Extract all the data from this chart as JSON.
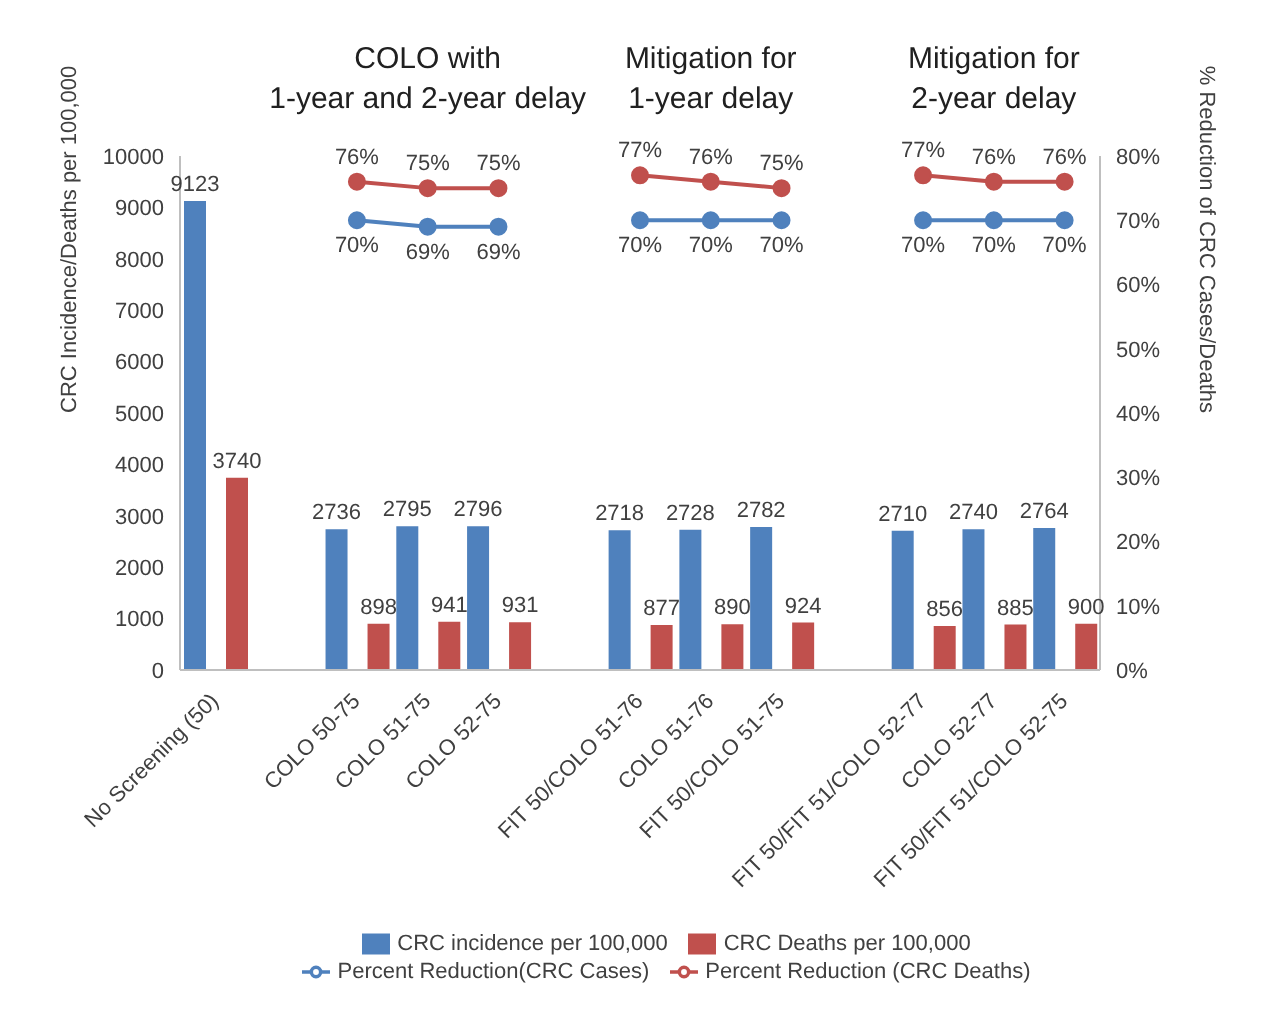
{
  "chart_data": {
    "type": "bar",
    "categories": [
      "No Screening (50)",
      null,
      "COLO 50-75",
      "COLO 51-75",
      "COLO 52-75",
      null,
      "FIT 50/COLO 51-76",
      "COLO 51-76",
      "FIT 50/COLO 51-75",
      null,
      "FIT 50/FIT 51/COLO 52-77",
      "COLO 52-77",
      "FIT 50/FIT 51/COLO 52-75"
    ],
    "ylabel": "CRC Incidence/Deaths per 100,000",
    "y2label": "% Reduction of CRC Cases/Deaths",
    "ylim": [
      0,
      10000
    ],
    "yticks": [
      0,
      1000,
      2000,
      3000,
      4000,
      5000,
      6000,
      7000,
      8000,
      9000,
      10000
    ],
    "y2lim": [
      0,
      80
    ],
    "y2ticks": [
      {
        "value": 0,
        "label": "0%"
      },
      {
        "value": 10,
        "label": "10%"
      },
      {
        "value": 20,
        "label": "20%"
      },
      {
        "value": 30,
        "label": "30%"
      },
      {
        "value": 40,
        "label": "40%"
      },
      {
        "value": 50,
        "label": "50%"
      },
      {
        "value": 60,
        "label": "60%"
      },
      {
        "value": 70,
        "label": "70%"
      },
      {
        "value": 80,
        "label": "80%"
      }
    ],
    "annotations": [
      "COLO with\n1-year and 2-year delay",
      "Mitigation for\n1-year delay",
      "Mitigation for\n2-year delay"
    ],
    "series": [
      {
        "name": "CRC incidence per 100,000",
        "color": "#4f81bd",
        "values": [
          9123,
          null,
          2736,
          2795,
          2796,
          null,
          2718,
          2728,
          2782,
          null,
          2710,
          2740,
          2764
        ]
      },
      {
        "name": "CRC Deaths per 100,000",
        "color": "#c0504d",
        "values": [
          3740,
          null,
          898,
          941,
          931,
          null,
          877,
          890,
          924,
          null,
          856,
          885,
          900
        ]
      },
      {
        "name": "Percent Reduction(CRC Cases)",
        "type": "line",
        "axis": "y2",
        "color": "#4f81bd",
        "value_labels": [
          null,
          null,
          "70%",
          "69%",
          "69%",
          null,
          "70%",
          "70%",
          "70%",
          null,
          "70%",
          "70%",
          "70%"
        ],
        "values": [
          null,
          null,
          70,
          69,
          69,
          null,
          70,
          70,
          70,
          null,
          70,
          70,
          70
        ]
      },
      {
        "name": "Percent Reduction (CRC Deaths)",
        "type": "line",
        "axis": "y2",
        "color": "#c0504d",
        "value_labels": [
          null,
          null,
          "76%",
          "75%",
          "75%",
          null,
          "77%",
          "76%",
          "75%",
          null,
          "77%",
          "76%",
          "76%"
        ],
        "values": [
          null,
          null,
          76,
          75,
          75,
          null,
          77,
          76,
          75,
          null,
          77,
          76,
          76
        ]
      }
    ],
    "data_labels": true,
    "marker": "circle",
    "legend": "bottom",
    "grid": false
  }
}
